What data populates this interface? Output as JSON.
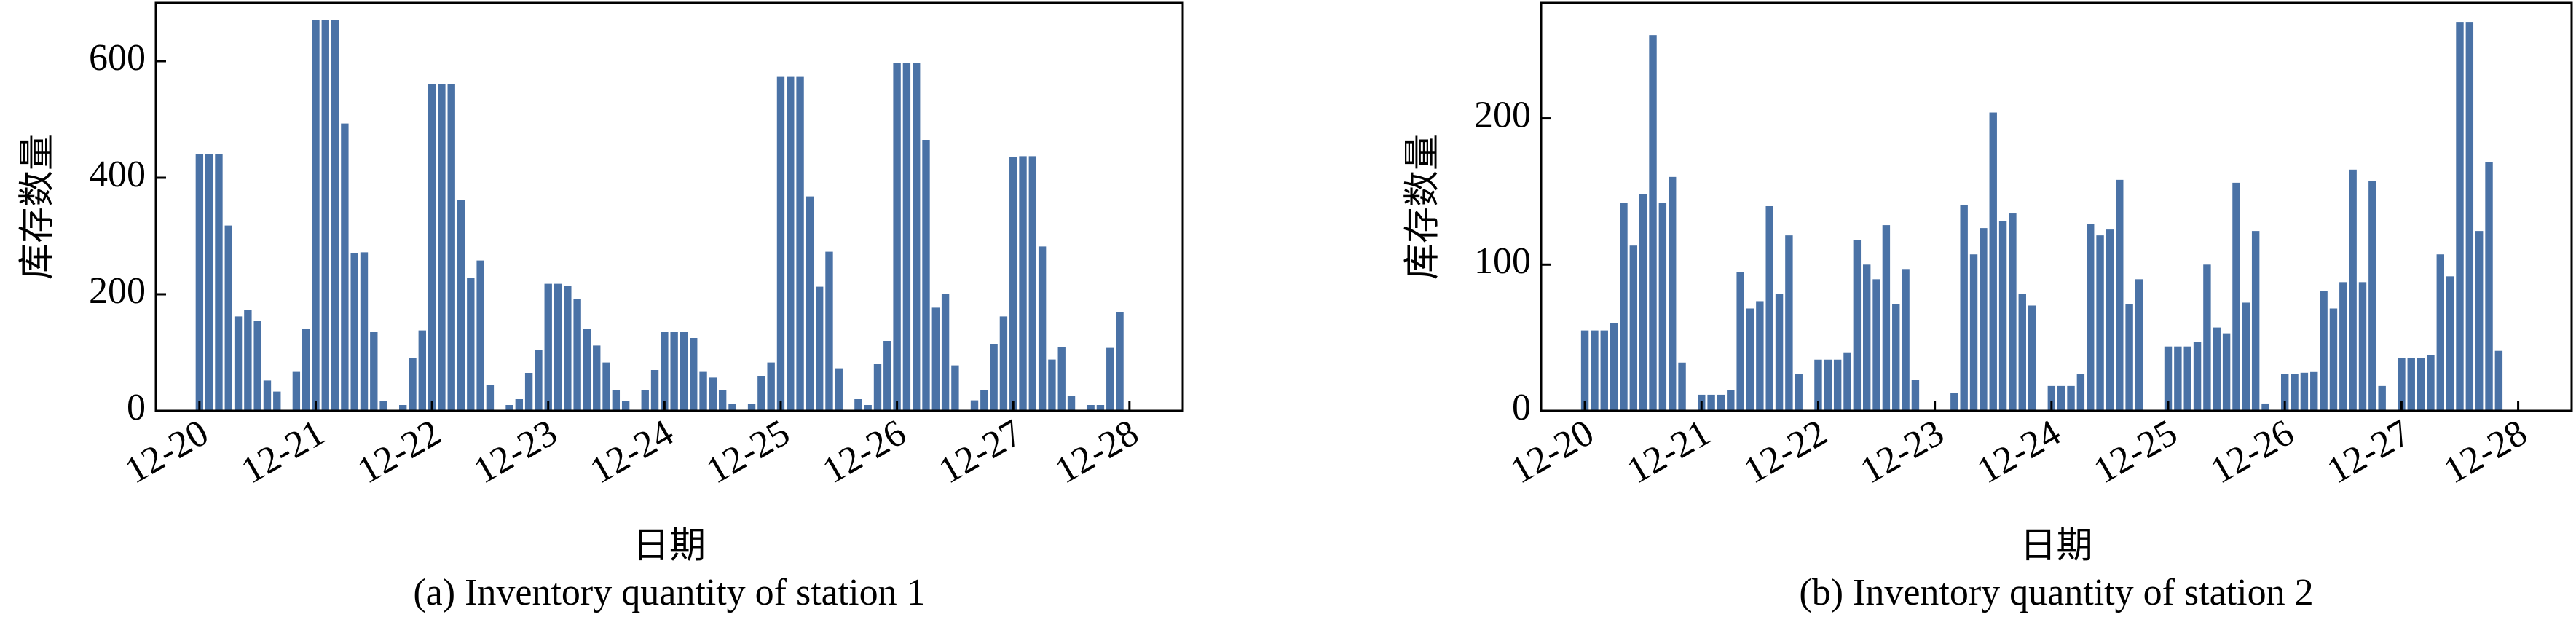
{
  "chart_data": [
    {
      "type": "bar",
      "caption": "(a) Inventory quantity of station 1",
      "x_label": "日期",
      "y_label": "库存数量",
      "color": "#4a72a6",
      "x": [
        0,
        2,
        4,
        6,
        8,
        10,
        12,
        14,
        16,
        18,
        20,
        22,
        24,
        26,
        28,
        30,
        32,
        34,
        36,
        38,
        40,
        42,
        44,
        46,
        48,
        50,
        52,
        54,
        56,
        58,
        60,
        62,
        64,
        66,
        68,
        70,
        72,
        74,
        76,
        78,
        80,
        82,
        84,
        86,
        88,
        90,
        92,
        94,
        96,
        98,
        100,
        102,
        104,
        106,
        108,
        110,
        112,
        114,
        116,
        118,
        120,
        122,
        124,
        126,
        128,
        130,
        132,
        134,
        136,
        138,
        140,
        142,
        144,
        146,
        148,
        150,
        152,
        154,
        156,
        158,
        160,
        162,
        164,
        166,
        168,
        170,
        172,
        174,
        176,
        178,
        180,
        182,
        184,
        186,
        188,
        190
      ],
      "values": [
        440,
        440,
        440,
        318,
        162,
        173,
        155,
        52,
        33,
        0,
        68,
        140,
        670,
        670,
        670,
        493,
        270,
        272,
        135,
        17,
        0,
        10,
        90,
        138,
        560,
        560,
        560,
        362,
        228,
        258,
        45,
        0,
        10,
        20,
        65,
        105,
        218,
        218,
        215,
        192,
        140,
        112,
        83,
        35,
        17,
        0,
        35,
        70,
        135,
        135,
        135,
        125,
        68,
        57,
        35,
        12,
        0,
        12,
        60,
        83,
        573,
        573,
        573,
        368,
        213,
        273,
        73,
        0,
        20,
        10,
        80,
        120,
        597,
        597,
        597,
        465,
        177,
        200,
        78,
        0,
        18,
        35,
        115,
        162,
        435,
        437,
        437,
        282,
        88,
        110,
        25,
        0,
        10,
        10,
        108,
        170
      ],
      "xlim": [
        -9,
        203
      ],
      "ylim": [
        0,
        700
      ],
      "yticks": [
        0,
        200,
        400,
        600
      ],
      "xticks": [
        {
          "value": 0,
          "label": "12-20"
        },
        {
          "value": 24,
          "label": "12-21"
        },
        {
          "value": 48,
          "label": "12-22"
        },
        {
          "value": 72,
          "label": "12-23"
        },
        {
          "value": 96,
          "label": "12-24"
        },
        {
          "value": 120,
          "label": "12-25"
        },
        {
          "value": 144,
          "label": "12-26"
        },
        {
          "value": 168,
          "label": "12-27"
        },
        {
          "value": 192,
          "label": "12-28"
        }
      ]
    },
    {
      "type": "bar",
      "caption": "(b) Inventory quantity of station 2",
      "x_label": "日期",
      "y_label": "库存数量",
      "color": "#4a72a6",
      "x": [
        0,
        2,
        4,
        6,
        8,
        10,
        12,
        14,
        16,
        18,
        20,
        22,
        24,
        26,
        28,
        30,
        32,
        34,
        36,
        38,
        40,
        42,
        44,
        46,
        48,
        50,
        52,
        54,
        56,
        58,
        60,
        62,
        64,
        66,
        68,
        70,
        72,
        74,
        76,
        78,
        80,
        82,
        84,
        86,
        88,
        90,
        92,
        94,
        96,
        98,
        100,
        102,
        104,
        106,
        108,
        110,
        112,
        114,
        116,
        118,
        120,
        122,
        124,
        126,
        128,
        130,
        132,
        134,
        136,
        138,
        140,
        142,
        144,
        146,
        148,
        150,
        152,
        154,
        156,
        158,
        160,
        162,
        164,
        166,
        168,
        170,
        172,
        174,
        176,
        178,
        180,
        182,
        184,
        186,
        188,
        190
      ],
      "values": [
        55,
        55,
        55,
        60,
        142,
        113,
        148,
        257,
        142,
        160,
        33,
        0,
        11,
        11,
        11,
        14,
        95,
        70,
        75,
        140,
        80,
        120,
        25,
        0,
        35,
        35,
        35,
        40,
        117,
        100,
        90,
        127,
        73,
        97,
        21,
        0,
        0,
        0,
        12,
        141,
        107,
        125,
        204,
        130,
        135,
        80,
        72,
        0,
        17,
        17,
        17,
        25,
        128,
        120,
        124,
        158,
        73,
        90,
        0,
        0,
        44,
        44,
        44,
        47,
        100,
        57,
        53,
        156,
        74,
        123,
        5,
        0,
        25,
        25,
        26,
        27,
        82,
        70,
        88,
        165,
        88,
        157,
        17,
        0,
        36,
        36,
        36,
        38,
        107,
        92,
        266,
        266,
        123,
        170,
        41,
        0
      ],
      "xlim": [
        -9,
        203
      ],
      "ylim": [
        0,
        279
      ],
      "yticks": [
        0,
        100,
        200
      ],
      "xticks": [
        {
          "value": 0,
          "label": "12-20"
        },
        {
          "value": 24,
          "label": "12-21"
        },
        {
          "value": 48,
          "label": "12-22"
        },
        {
          "value": 72,
          "label": "12-23"
        },
        {
          "value": 96,
          "label": "12-24"
        },
        {
          "value": 120,
          "label": "12-25"
        },
        {
          "value": 144,
          "label": "12-26"
        },
        {
          "value": 168,
          "label": "12-27"
        },
        {
          "value": 192,
          "label": "12-28"
        }
      ]
    }
  ]
}
